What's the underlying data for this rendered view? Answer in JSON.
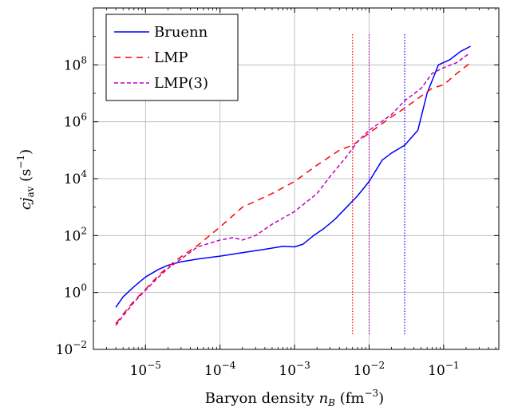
{
  "chart_data": {
    "type": "line",
    "xlabel": "Baryon density n_B (fm^-3)",
    "ylabel": "c j_av (s^-1)",
    "xscale": "log",
    "yscale": "log",
    "xlim": [
      2e-06,
      0.55
    ],
    "ylim": [
      0.01,
      10000000000.0
    ],
    "grid": true,
    "legend_position": "top-left",
    "x_tick_labels": [
      "10^-5",
      "10^-4",
      "10^-3",
      "10^-2",
      "10^-1"
    ],
    "y_tick_labels": [
      "10^-2",
      "10^0",
      "10^2",
      "10^4",
      "10^6",
      "10^8"
    ],
    "series": [
      {
        "name": "Bruenn",
        "color": "#0000ff",
        "style": "solid",
        "x": [
          4e-06,
          5e-06,
          7e-06,
          1e-05,
          1.5e-05,
          2e-05,
          3e-05,
          5e-05,
          0.0001,
          0.0002,
          0.0004,
          0.0007,
          0.001,
          0.0013,
          0.0018,
          0.0025,
          0.0035,
          0.005,
          0.007,
          0.01,
          0.015,
          0.02,
          0.03,
          0.045,
          0.06,
          0.085,
          0.12,
          0.17,
          0.23
        ],
        "y": [
          0.3,
          0.7,
          1.6,
          3.5,
          6.5,
          9,
          12,
          15,
          19,
          25,
          33,
          42,
          40,
          50,
          100,
          180,
          380,
          1000,
          2500,
          8000,
          45000,
          80000,
          150000,
          500000,
          10000000,
          100000000,
          150000000,
          300000000,
          450000000
        ]
      },
      {
        "name": "LMP",
        "color": "#ff0000",
        "style": "dashed",
        "x": [
          4e-06,
          5e-06,
          7e-06,
          1e-05,
          1.5e-05,
          2e-05,
          3e-05,
          5e-05,
          0.0001,
          0.0002,
          0.0005,
          0.001,
          0.002,
          0.004,
          0.006,
          0.01,
          0.02,
          0.03,
          0.05,
          0.07,
          0.1,
          0.15,
          0.22
        ],
        "y": [
          0.08,
          0.17,
          0.5,
          1.3,
          4,
          8,
          18,
          45,
          200,
          1000,
          3000,
          8000,
          30000,
          100000,
          150000,
          400000,
          1500000,
          3000000,
          8000000,
          15000000,
          20000000,
          50000000,
          110000000
        ]
      },
      {
        "name": "LMP(3)",
        "color": "#bf00bf",
        "style": "dashed",
        "x": [
          4e-06,
          5e-06,
          7e-06,
          1e-05,
          1.5e-05,
          2e-05,
          3e-05,
          5e-05,
          0.0001,
          0.00015,
          0.0002,
          0.0003,
          0.0005,
          0.001,
          0.002,
          0.003,
          0.005,
          0.007,
          0.01,
          0.02,
          0.03,
          0.05,
          0.07,
          0.1,
          0.15,
          0.22
        ],
        "y": [
          0.07,
          0.15,
          0.45,
          1.2,
          3.5,
          7,
          15,
          40,
          70,
          85,
          70,
          100,
          250,
          700,
          3000,
          12000,
          60000,
          200000,
          500000,
          1800000,
          5500000,
          15000000,
          50000000,
          80000000,
          120000000,
          250000000
        ]
      }
    ],
    "vertical_lines": [
      {
        "x": 0.006,
        "color": "#ff0000"
      },
      {
        "x": 0.01,
        "color": "#bf00bf"
      },
      {
        "x": 0.03,
        "color": "#0000ff"
      }
    ]
  }
}
